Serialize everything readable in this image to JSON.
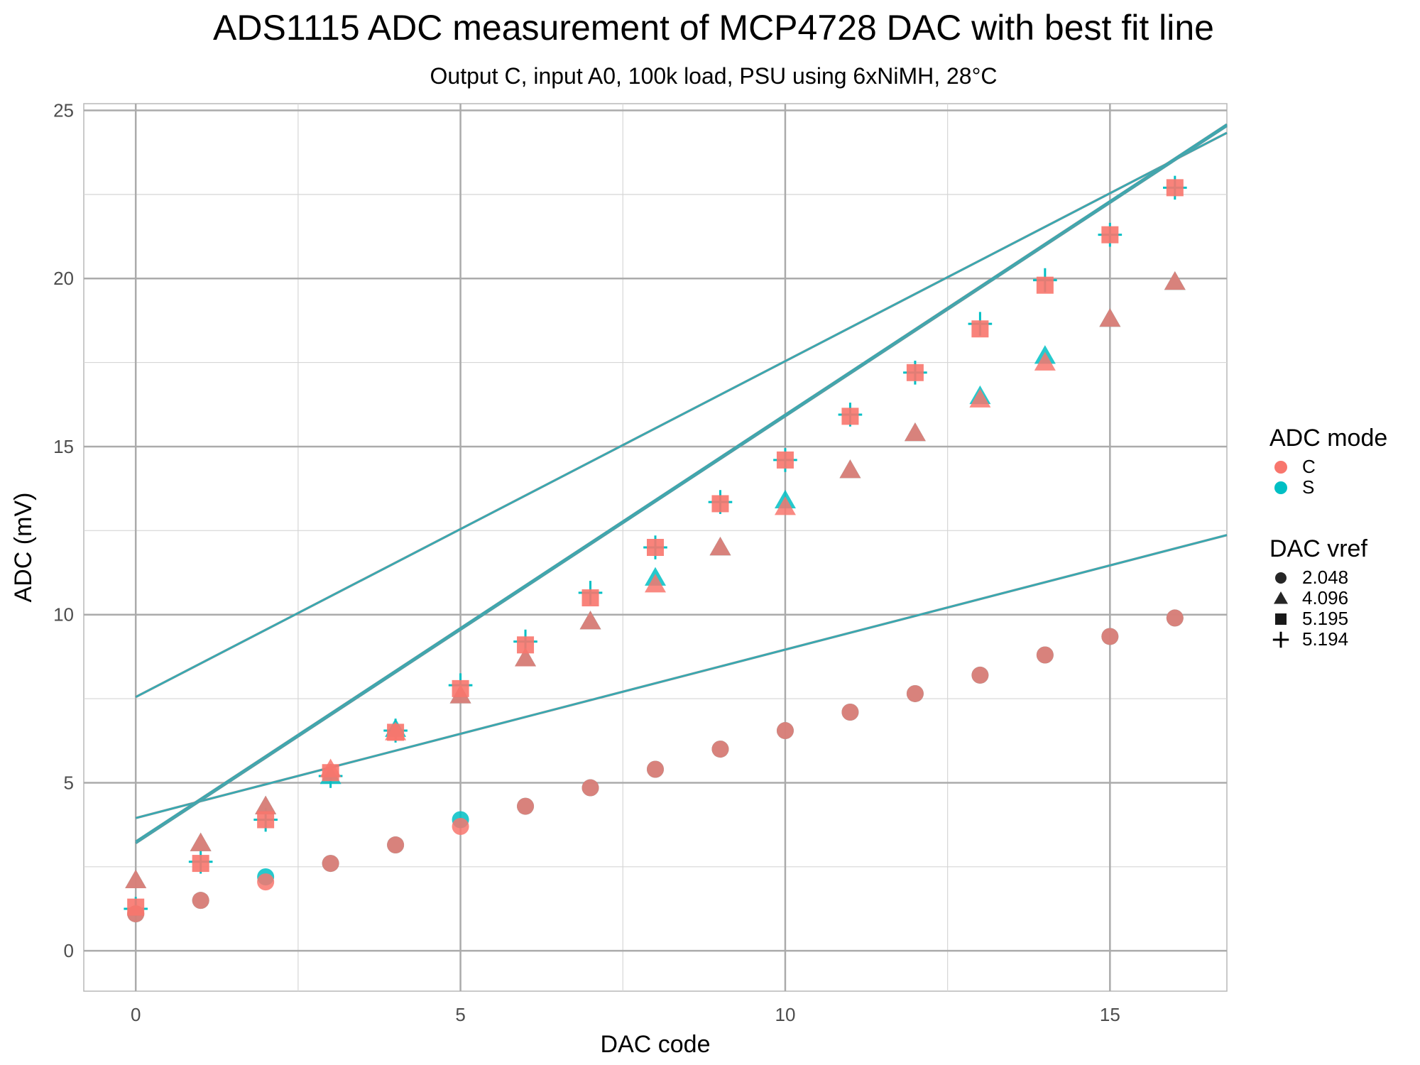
{
  "chart_data": {
    "type": "scatter",
    "title": "ADS1115 ADC measurement of MCP4728 DAC with best fit line",
    "subtitle": "Output C, input A0, 100k load, PSU using 6xNiMH, 28°C",
    "xlabel": "DAC code",
    "ylabel": "ADC (mV)",
    "xlim": [
      -0.8,
      16.8
    ],
    "ylim": [
      -1.2,
      25.2
    ],
    "x_ticks": [
      0,
      5,
      10,
      15
    ],
    "y_ticks": [
      0,
      5,
      10,
      15,
      20,
      25
    ],
    "grid": true,
    "legend_placement": "right",
    "colors": {
      "C": "#f8766d",
      "S": "#00bfc4",
      "line": "#3aa8b0",
      "panel_grid": "#ababab"
    },
    "legends": [
      {
        "title": "ADC mode",
        "kind": "color",
        "entries": [
          {
            "label": "C",
            "key": "C"
          },
          {
            "label": "S",
            "key": "S"
          }
        ]
      },
      {
        "title": "DAC vref",
        "kind": "shape",
        "entries": [
          {
            "label": "2.048",
            "shape": "circle"
          },
          {
            "label": "4.096",
            "shape": "triangle"
          },
          {
            "label": "5.195",
            "shape": "square"
          },
          {
            "label": "5.194",
            "shape": "plus"
          }
        ]
      }
    ],
    "series": [
      {
        "vref": "2.048",
        "mode": "C",
        "shape": "circle",
        "x": [
          0,
          1,
          2,
          3,
          4,
          5,
          6,
          7,
          8,
          9,
          10,
          11,
          12,
          13,
          14,
          15,
          16
        ],
        "y": [
          1.1,
          1.5,
          2.05,
          2.6,
          3.15,
          3.7,
          4.3,
          4.85,
          5.4,
          6.0,
          6.55,
          7.1,
          7.65,
          8.2,
          8.8,
          9.35,
          9.9
        ]
      },
      {
        "vref": "2.048",
        "mode": "S",
        "shape": "circle",
        "x": [
          0,
          1,
          2,
          3,
          4,
          5,
          6,
          7,
          8,
          9,
          10,
          11,
          12,
          13,
          14,
          15,
          16
        ],
        "y": [
          1.1,
          1.5,
          2.2,
          2.6,
          3.15,
          3.9,
          4.3,
          4.85,
          5.4,
          6.0,
          6.55,
          7.1,
          7.65,
          8.2,
          8.8,
          9.35,
          9.9
        ]
      },
      {
        "vref": "4.096",
        "mode": "C",
        "shape": "triangle",
        "x": [
          0,
          1,
          2,
          3,
          4,
          5,
          6,
          7,
          8,
          9,
          10,
          11,
          12,
          13,
          14,
          15,
          16
        ],
        "y": [
          2.1,
          3.2,
          4.3,
          5.4,
          6.5,
          7.6,
          8.7,
          9.8,
          10.9,
          12.0,
          13.2,
          14.3,
          15.4,
          16.4,
          17.5,
          18.8,
          19.9
        ]
      },
      {
        "vref": "4.096",
        "mode": "S",
        "shape": "triangle",
        "x": [
          0,
          1,
          2,
          3,
          4,
          5,
          6,
          7,
          8,
          9,
          10,
          11,
          12,
          13,
          14,
          15,
          16
        ],
        "y": [
          2.1,
          3.2,
          4.3,
          5.2,
          6.6,
          7.6,
          8.7,
          9.8,
          11.1,
          12.0,
          13.4,
          14.3,
          15.4,
          16.5,
          17.7,
          18.8,
          19.9
        ]
      },
      {
        "vref": "5.195",
        "mode": "C",
        "shape": "square",
        "x": [
          0,
          1,
          2,
          3,
          4,
          5,
          6,
          7,
          8,
          9,
          10,
          11,
          12,
          13,
          14,
          15,
          16
        ],
        "y": [
          1.3,
          2.6,
          3.9,
          5.3,
          6.5,
          7.8,
          9.1,
          10.5,
          12.0,
          13.3,
          14.6,
          15.9,
          17.2,
          18.5,
          19.8,
          21.3,
          22.7
        ]
      },
      {
        "vref": "5.194",
        "mode": "S",
        "shape": "plus",
        "x": [
          0,
          1,
          2,
          3,
          4,
          5,
          6,
          7,
          8,
          9,
          10,
          11,
          12,
          13,
          14,
          15,
          16
        ],
        "y": [
          1.25,
          2.65,
          3.9,
          5.2,
          6.55,
          7.9,
          9.2,
          10.65,
          12.0,
          13.35,
          14.6,
          15.95,
          17.2,
          18.65,
          19.95,
          21.3,
          22.7
        ]
      }
    ],
    "fit_lines": [
      {
        "vref": "2.048",
        "intercept": 3.95,
        "slope": 0.501
      },
      {
        "vref": "4.096",
        "intercept": 7.55,
        "slope": 0.999
      },
      {
        "vref": "5.195",
        "intercept": 3.2,
        "slope": 1.27
      },
      {
        "vref": "5.194",
        "intercept": 3.25,
        "slope": 1.27
      }
    ]
  }
}
